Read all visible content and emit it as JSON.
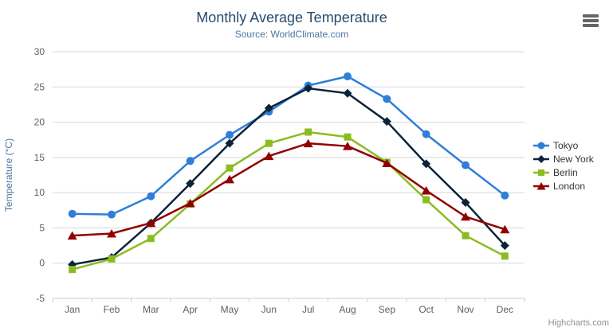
{
  "chart": {
    "title": "Monthly Average Temperature",
    "subtitle": "Source: WorldClimate.com",
    "y_axis_title": "Temperature (°C)",
    "credits": "Highcharts.com"
  },
  "theme": {
    "title_color": "#274b6d",
    "subtitle_color": "#4d759e",
    "axis_label_color": "#606060",
    "y_axis_title_color": "#4d759e",
    "grid_color": "#d8d8d8",
    "axis_line_color": "#c0d0e0",
    "legend_text_color": "#333333",
    "credits_color": "#909090",
    "background": "#ffffff",
    "export_icon_color": "#666666"
  },
  "chart_data": {
    "type": "line",
    "title": "Monthly Average Temperature",
    "subtitle": "Source: WorldClimate.com",
    "xlabel": "",
    "ylabel": "Temperature (°C)",
    "categories": [
      "Jan",
      "Feb",
      "Mar",
      "Apr",
      "May",
      "Jun",
      "Jul",
      "Aug",
      "Sep",
      "Oct",
      "Nov",
      "Dec"
    ],
    "ylim": [
      -5,
      30
    ],
    "y_ticks": [
      -5,
      0,
      5,
      10,
      15,
      20,
      25,
      30
    ],
    "grid": true,
    "legend_position": "right",
    "series": [
      {
        "name": "Tokyo",
        "color": "#2f7ed8",
        "marker": "circle",
        "values": [
          7.0,
          6.9,
          9.5,
          14.5,
          18.2,
          21.5,
          25.2,
          26.5,
          23.3,
          18.3,
          13.9,
          9.6
        ]
      },
      {
        "name": "New York",
        "color": "#0d233a",
        "marker": "diamond",
        "values": [
          -0.2,
          0.8,
          5.7,
          11.3,
          17.0,
          22.0,
          24.8,
          24.1,
          20.1,
          14.1,
          8.6,
          2.5
        ]
      },
      {
        "name": "Berlin",
        "color": "#8bbc21",
        "marker": "square",
        "values": [
          -0.9,
          0.6,
          3.5,
          8.4,
          13.5,
          17.0,
          18.6,
          17.9,
          14.3,
          9.0,
          3.9,
          1.0
        ]
      },
      {
        "name": "London",
        "color": "#910000",
        "marker": "triangle",
        "values": [
          3.9,
          4.2,
          5.7,
          8.5,
          11.9,
          15.2,
          17.0,
          16.6,
          14.2,
          10.3,
          6.6,
          4.8
        ]
      }
    ]
  }
}
